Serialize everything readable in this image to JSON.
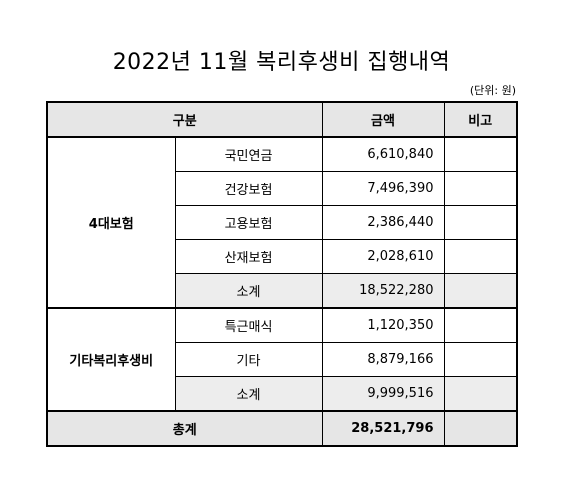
{
  "title": "2022년 11월 복리후생비 집행내역",
  "unit": "(단위: 원)",
  "header": {
    "category": "구분",
    "amount": "금액",
    "note": "비고"
  },
  "groups": [
    {
      "name": "4대보험",
      "items": [
        {
          "label": "국민연금",
          "amount": "6,610,840"
        },
        {
          "label": "건강보험",
          "amount": "7,496,390"
        },
        {
          "label": "고용보험",
          "amount": "2,386,440"
        },
        {
          "label": "산재보험",
          "amount": "2,028,610"
        }
      ],
      "subtotal": {
        "label": "소계",
        "amount": "18,522,280"
      }
    },
    {
      "name": "기타복리후생비",
      "items": [
        {
          "label": "특근매식",
          "amount": "1,120,350"
        },
        {
          "label": "기타",
          "amount": "8,879,166"
        }
      ],
      "subtotal": {
        "label": "소계",
        "amount": "9,999,516"
      }
    }
  ],
  "total": {
    "label": "총계",
    "amount": "28,521,796"
  }
}
